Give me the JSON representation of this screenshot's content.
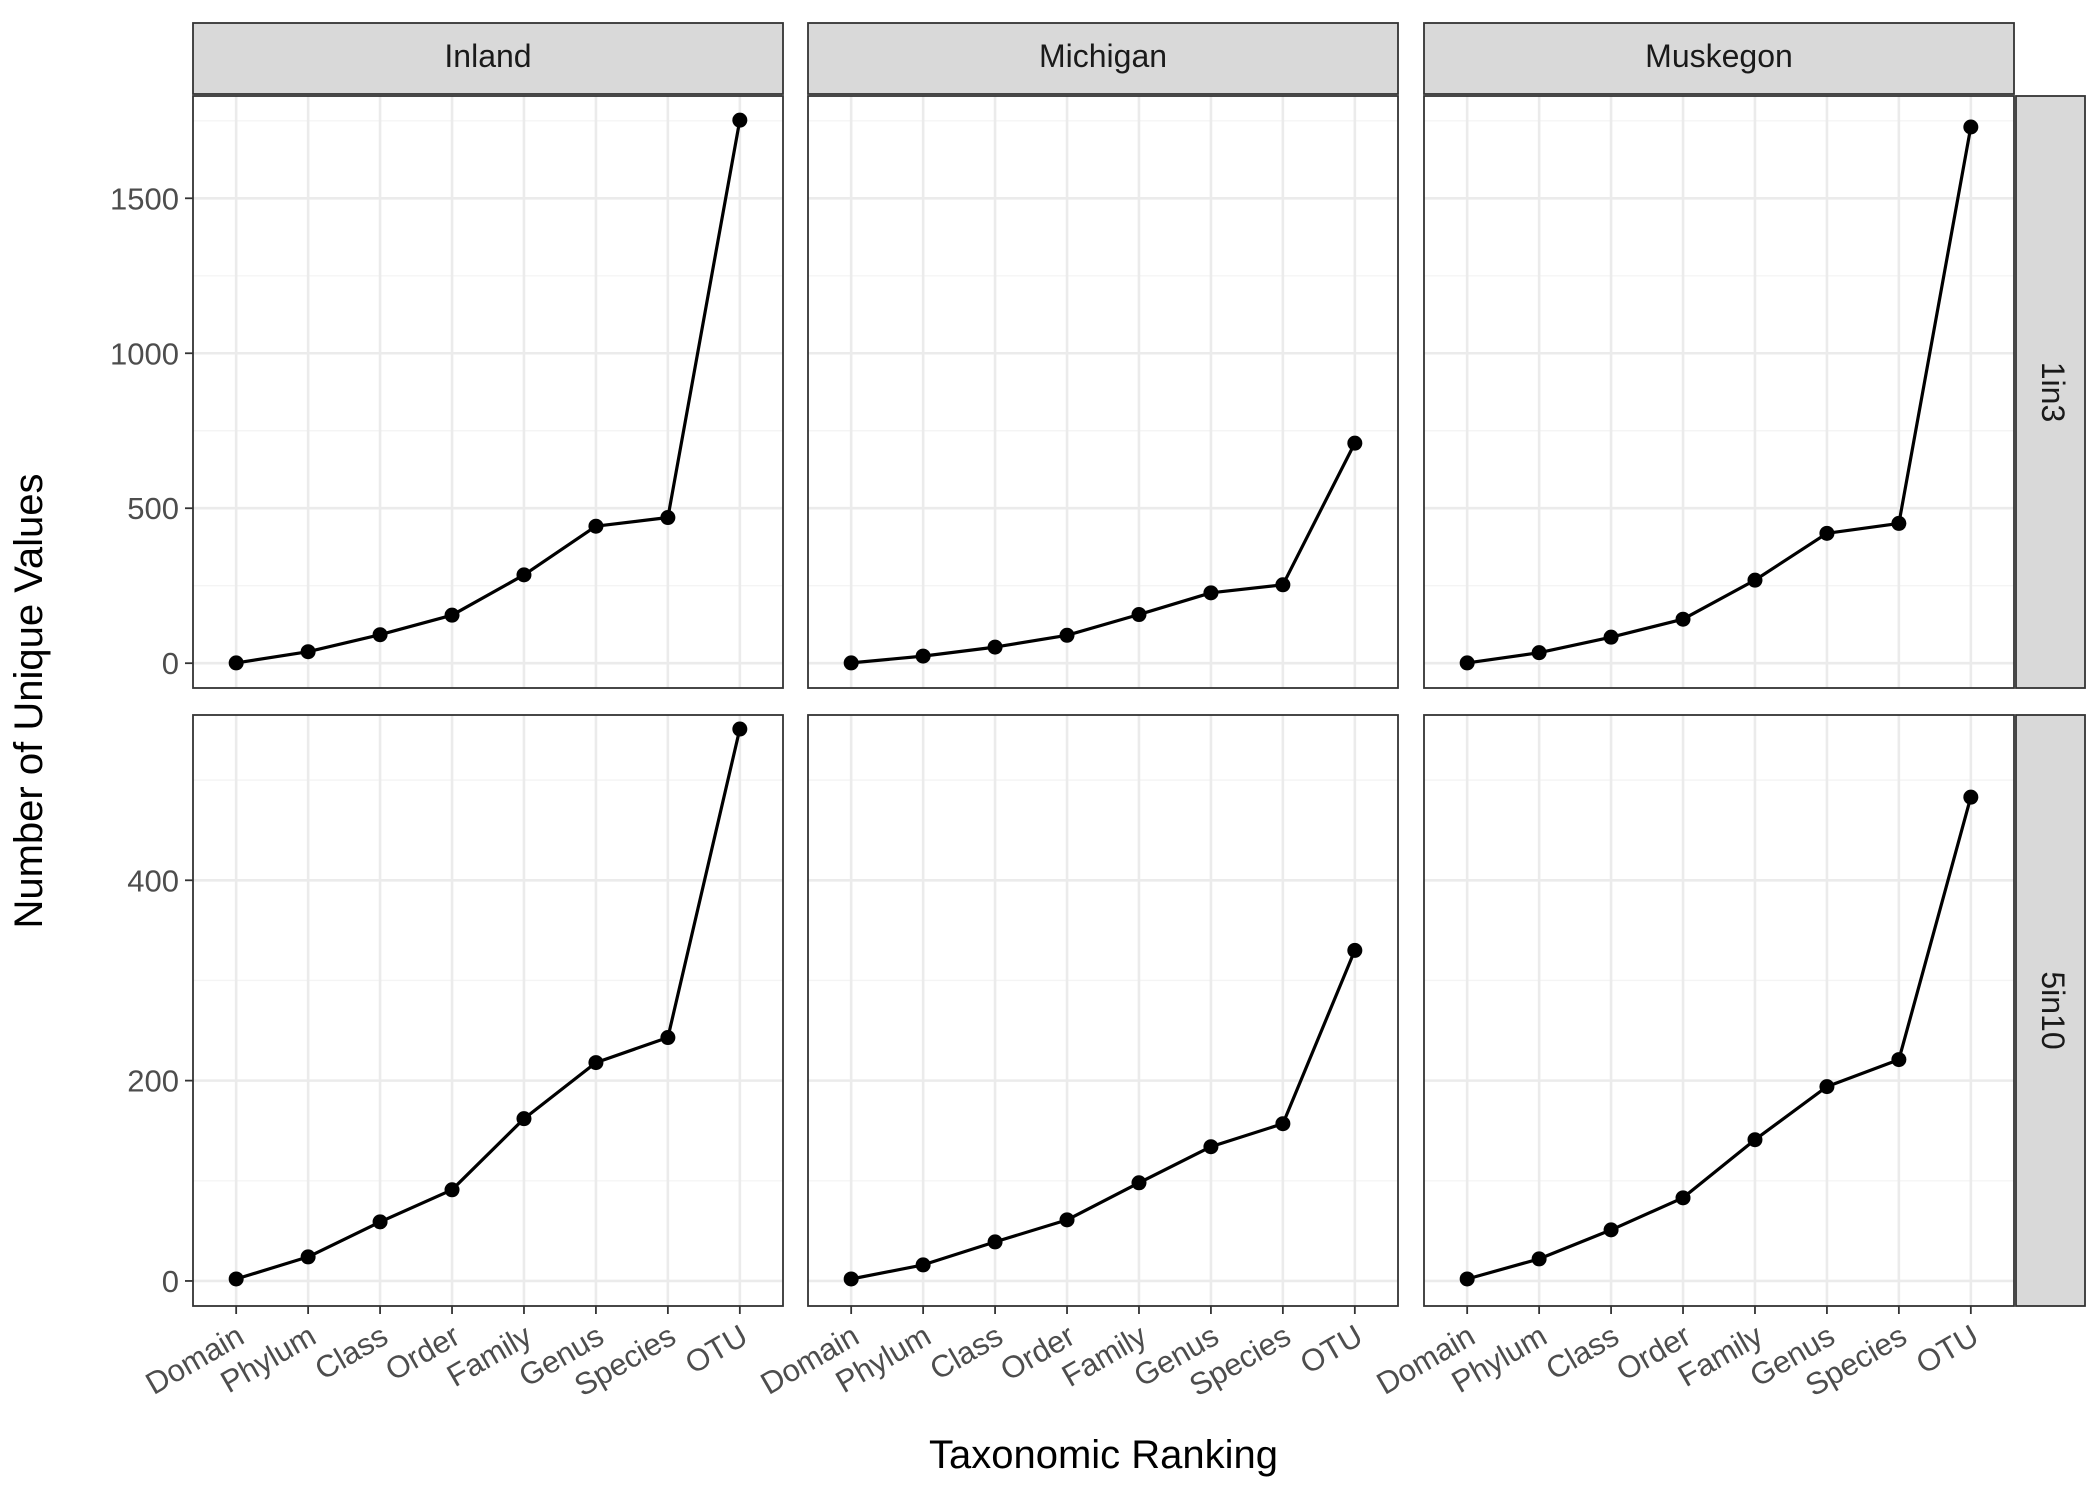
{
  "chart_data": {
    "type": "line",
    "xlabel": "Taxonomic Ranking",
    "ylabel": "Number of Unique Values",
    "facet_columns": [
      "Inland",
      "Michigan",
      "Muskegon"
    ],
    "facet_rows": [
      "1in3",
      "5in10"
    ],
    "categories": [
      "Domain",
      "Phylum",
      "Class",
      "Order",
      "Family",
      "Genus",
      "Species",
      "OTU"
    ],
    "rows": [
      {
        "name": "1in3",
        "ylim": [
          -80,
          1830
        ],
        "yticks": [
          0,
          500,
          1000,
          1500
        ],
        "panels": [
          {
            "column": "Inland",
            "values": [
              1,
              37,
              92,
              155,
              285,
              442,
              470,
              1752
            ]
          },
          {
            "column": "Michigan",
            "values": [
              1,
              23,
              52,
              90,
              157,
              227,
              253,
              710
            ]
          },
          {
            "column": "Muskegon",
            "values": [
              1,
              34,
              84,
              142,
              268,
              419,
              451,
              1730
            ]
          }
        ]
      },
      {
        "name": "5in10",
        "ylim": [
          -25,
          565
        ],
        "yticks": [
          0,
          200,
          400
        ],
        "panels": [
          {
            "column": "Inland",
            "values": [
              2,
              24,
              59,
              91,
              162,
              218,
              243,
              551
            ]
          },
          {
            "column": "Michigan",
            "values": [
              2,
              16,
              39,
              61,
              98,
              134,
              157,
              330
            ]
          },
          {
            "column": "Muskegon",
            "values": [
              2,
              22,
              51,
              83,
              141,
              194,
              221,
              483
            ]
          }
        ]
      }
    ],
    "grid": true,
    "legend": "none",
    "colors": {
      "line": "#000000",
      "strip_fill": "#d9d9d9",
      "strip_border": "#333333",
      "grid_major": "#ebebeb",
      "grid_minor": "#f4f4f4",
      "panel_border": "#333333",
      "tick_text": "#4d4d4d"
    }
  }
}
